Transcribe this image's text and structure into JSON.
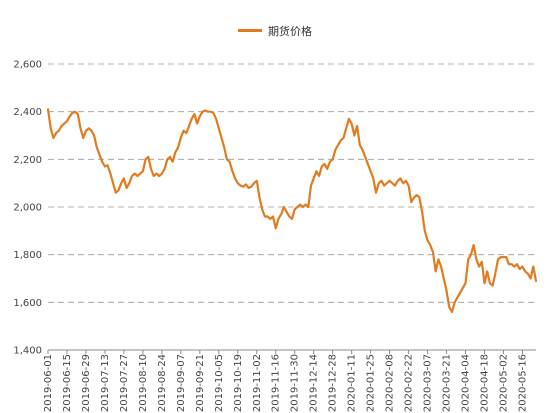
{
  "chart_data": {
    "type": "line",
    "title": "",
    "xlabel": "",
    "ylabel": "",
    "ylim": [
      1400,
      2600
    ],
    "y_ticks": [
      1400,
      1600,
      1800,
      2000,
      2200,
      2400,
      2600
    ],
    "y_tick_labels": [
      "1,400",
      "1,600",
      "1,800",
      "2,000",
      "2,200",
      "2,400",
      "2,600"
    ],
    "grid": "horizontal-dashed",
    "legend_position": "top-center",
    "x_tick_labels": [
      "2019-06-01",
      "2019-06-15",
      "2019-06-29",
      "2019-07-13",
      "2019-07-27",
      "2019-08-10",
      "2019-08-24",
      "2019-09-07",
      "2019-09-21",
      "2019-10-05",
      "2019-10-19",
      "2019-11-02",
      "2019-11-16",
      "2019-11-30",
      "2019-12-14",
      "2019-12-28",
      "2020-01-11",
      "2020-01-25",
      "2020-02-08",
      "2020-02-22",
      "2020-03-07",
      "2020-03-21",
      "2020-04-04",
      "2020-04-18",
      "2020-05-02",
      "2020-05-16"
    ],
    "series": [
      {
        "name": "期货价格",
        "color": "#E07B20",
        "points": [
          [
            "2019-06-01",
            2410
          ],
          [
            "2019-06-03",
            2330
          ],
          [
            "2019-06-05",
            2290
          ],
          [
            "2019-06-07",
            2310
          ],
          [
            "2019-06-09",
            2320
          ],
          [
            "2019-06-11",
            2340
          ],
          [
            "2019-06-13",
            2350
          ],
          [
            "2019-06-15",
            2360
          ],
          [
            "2019-06-17",
            2380
          ],
          [
            "2019-06-19",
            2395
          ],
          [
            "2019-06-21",
            2400
          ],
          [
            "2019-06-23",
            2390
          ],
          [
            "2019-06-25",
            2330
          ],
          [
            "2019-06-27",
            2290
          ],
          [
            "2019-06-29",
            2320
          ],
          [
            "2019-07-01",
            2330
          ],
          [
            "2019-07-03",
            2320
          ],
          [
            "2019-07-05",
            2300
          ],
          [
            "2019-07-07",
            2250
          ],
          [
            "2019-07-09",
            2220
          ],
          [
            "2019-07-11",
            2190
          ],
          [
            "2019-07-13",
            2170
          ],
          [
            "2019-07-15",
            2175
          ],
          [
            "2019-07-17",
            2140
          ],
          [
            "2019-07-19",
            2100
          ],
          [
            "2019-07-21",
            2060
          ],
          [
            "2019-07-23",
            2070
          ],
          [
            "2019-07-25",
            2100
          ],
          [
            "2019-07-27",
            2120
          ],
          [
            "2019-07-29",
            2080
          ],
          [
            "2019-07-31",
            2100
          ],
          [
            "2019-08-02",
            2130
          ],
          [
            "2019-08-04",
            2140
          ],
          [
            "2019-08-06",
            2130
          ],
          [
            "2019-08-08",
            2140
          ],
          [
            "2019-08-10",
            2150
          ],
          [
            "2019-08-12",
            2200
          ],
          [
            "2019-08-14",
            2210
          ],
          [
            "2019-08-16",
            2160
          ],
          [
            "2019-08-18",
            2130
          ],
          [
            "2019-08-20",
            2140
          ],
          [
            "2019-08-22",
            2130
          ],
          [
            "2019-08-24",
            2140
          ],
          [
            "2019-08-26",
            2160
          ],
          [
            "2019-08-28",
            2200
          ],
          [
            "2019-08-30",
            2210
          ],
          [
            "2019-09-01",
            2190
          ],
          [
            "2019-09-03",
            2230
          ],
          [
            "2019-09-05",
            2250
          ],
          [
            "2019-09-07",
            2290
          ],
          [
            "2019-09-09",
            2320
          ],
          [
            "2019-09-11",
            2310
          ],
          [
            "2019-09-13",
            2340
          ],
          [
            "2019-09-15",
            2370
          ],
          [
            "2019-09-17",
            2390
          ],
          [
            "2019-09-19",
            2350
          ],
          [
            "2019-09-21",
            2380
          ],
          [
            "2019-09-23",
            2400
          ],
          [
            "2019-09-25",
            2405
          ],
          [
            "2019-09-27",
            2400
          ],
          [
            "2019-09-29",
            2400
          ],
          [
            "2019-10-01",
            2395
          ],
          [
            "2019-10-03",
            2370
          ],
          [
            "2019-10-05",
            2330
          ],
          [
            "2019-10-07",
            2290
          ],
          [
            "2019-10-09",
            2250
          ],
          [
            "2019-10-11",
            2200
          ],
          [
            "2019-10-13",
            2190
          ],
          [
            "2019-10-15",
            2150
          ],
          [
            "2019-10-17",
            2120
          ],
          [
            "2019-10-19",
            2100
          ],
          [
            "2019-10-21",
            2090
          ],
          [
            "2019-10-23",
            2085
          ],
          [
            "2019-10-25",
            2095
          ],
          [
            "2019-10-27",
            2080
          ],
          [
            "2019-10-29",
            2085
          ],
          [
            "2019-10-31",
            2100
          ],
          [
            "2019-11-02",
            2110
          ],
          [
            "2019-11-04",
            2040
          ],
          [
            "2019-11-06",
            1990
          ],
          [
            "2019-11-08",
            1960
          ],
          [
            "2019-11-10",
            1960
          ],
          [
            "2019-11-12",
            1950
          ],
          [
            "2019-11-14",
            1960
          ],
          [
            "2019-11-16",
            1910
          ],
          [
            "2019-11-18",
            1950
          ],
          [
            "2019-11-20",
            1970
          ],
          [
            "2019-11-22",
            2000
          ],
          [
            "2019-11-24",
            1980
          ],
          [
            "2019-11-26",
            1960
          ],
          [
            "2019-11-28",
            1950
          ],
          [
            "2019-11-30",
            1990
          ],
          [
            "2019-12-02",
            2000
          ],
          [
            "2019-12-04",
            2010
          ],
          [
            "2019-12-06",
            2000
          ],
          [
            "2019-12-08",
            2010
          ],
          [
            "2019-12-10",
            2000
          ],
          [
            "2019-12-12",
            2090
          ],
          [
            "2019-12-14",
            2120
          ],
          [
            "2019-12-16",
            2150
          ],
          [
            "2019-12-18",
            2130
          ],
          [
            "2019-12-20",
            2170
          ],
          [
            "2019-12-22",
            2180
          ],
          [
            "2019-12-24",
            2160
          ],
          [
            "2019-12-26",
            2190
          ],
          [
            "2019-12-28",
            2200
          ],
          [
            "2019-12-30",
            2240
          ],
          [
            "2020-01-01",
            2260
          ],
          [
            "2020-01-03",
            2280
          ],
          [
            "2020-01-05",
            2290
          ],
          [
            "2020-01-07",
            2330
          ],
          [
            "2020-01-09",
            2370
          ],
          [
            "2020-01-11",
            2350
          ],
          [
            "2020-01-13",
            2300
          ],
          [
            "2020-01-15",
            2340
          ],
          [
            "2020-01-17",
            2260
          ],
          [
            "2020-01-19",
            2240
          ],
          [
            "2020-01-21",
            2210
          ],
          [
            "2020-01-23",
            2180
          ],
          [
            "2020-01-25",
            2150
          ],
          [
            "2020-01-27",
            2120
          ],
          [
            "2020-01-29",
            2060
          ],
          [
            "2020-01-31",
            2100
          ],
          [
            "2020-02-02",
            2110
          ],
          [
            "2020-02-04",
            2090
          ],
          [
            "2020-02-06",
            2100
          ],
          [
            "2020-02-08",
            2110
          ],
          [
            "2020-02-10",
            2100
          ],
          [
            "2020-02-12",
            2090
          ],
          [
            "2020-02-14",
            2110
          ],
          [
            "2020-02-16",
            2120
          ],
          [
            "2020-02-18",
            2100
          ],
          [
            "2020-02-20",
            2110
          ],
          [
            "2020-02-22",
            2090
          ],
          [
            "2020-02-24",
            2020
          ],
          [
            "2020-02-26",
            2040
          ],
          [
            "2020-02-28",
            2050
          ],
          [
            "2020-03-01",
            2040
          ],
          [
            "2020-03-03",
            1980
          ],
          [
            "2020-03-05",
            1900
          ],
          [
            "2020-03-07",
            1860
          ],
          [
            "2020-03-09",
            1840
          ],
          [
            "2020-03-11",
            1810
          ],
          [
            "2020-03-13",
            1730
          ],
          [
            "2020-03-15",
            1780
          ],
          [
            "2020-03-17",
            1750
          ],
          [
            "2020-03-19",
            1700
          ],
          [
            "2020-03-21",
            1650
          ],
          [
            "2020-03-23",
            1580
          ],
          [
            "2020-03-25",
            1560
          ],
          [
            "2020-03-27",
            1600
          ],
          [
            "2020-03-29",
            1620
          ],
          [
            "2020-03-31",
            1640
          ],
          [
            "2020-04-02",
            1660
          ],
          [
            "2020-04-04",
            1680
          ],
          [
            "2020-04-06",
            1780
          ],
          [
            "2020-04-08",
            1800
          ],
          [
            "2020-04-10",
            1840
          ],
          [
            "2020-04-12",
            1780
          ],
          [
            "2020-04-14",
            1750
          ],
          [
            "2020-04-16",
            1770
          ],
          [
            "2020-04-18",
            1680
          ],
          [
            "2020-04-20",
            1730
          ],
          [
            "2020-04-22",
            1680
          ],
          [
            "2020-04-24",
            1670
          ],
          [
            "2020-04-26",
            1720
          ],
          [
            "2020-04-28",
            1780
          ],
          [
            "2020-04-30",
            1790
          ],
          [
            "2020-05-02",
            1790
          ],
          [
            "2020-05-04",
            1790
          ],
          [
            "2020-05-06",
            1760
          ],
          [
            "2020-05-08",
            1760
          ],
          [
            "2020-05-10",
            1750
          ],
          [
            "2020-05-12",
            1760
          ],
          [
            "2020-05-14",
            1740
          ],
          [
            "2020-05-16",
            1750
          ],
          [
            "2020-05-18",
            1730
          ],
          [
            "2020-05-20",
            1720
          ],
          [
            "2020-05-22",
            1700
          ],
          [
            "2020-05-24",
            1750
          ],
          [
            "2020-05-26",
            1690
          ]
        ]
      }
    ]
  }
}
